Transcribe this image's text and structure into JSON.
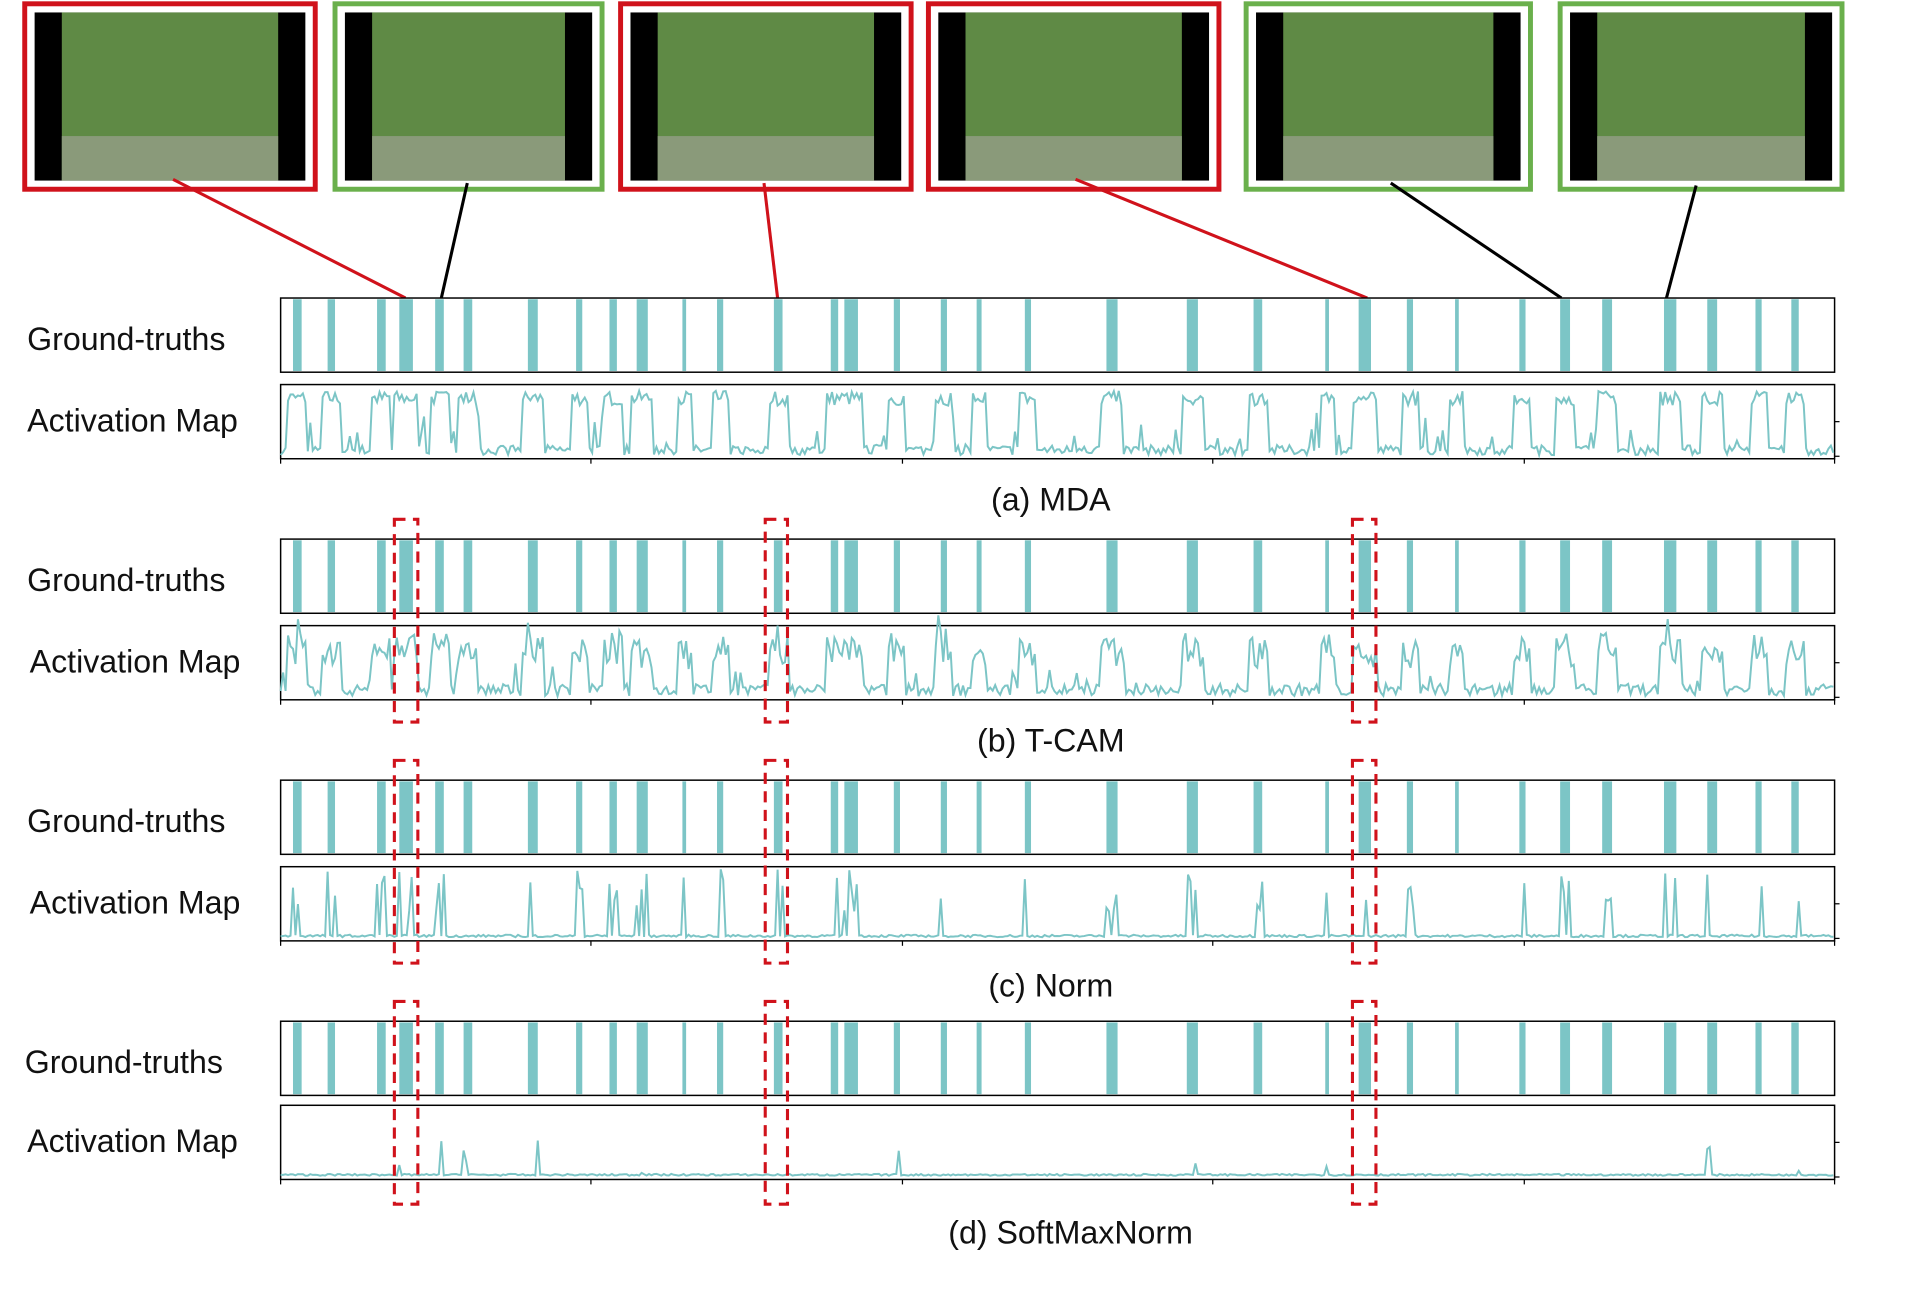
{
  "panels": [
    {
      "gt_label": "Ground-truths",
      "am_label": "Activation Map",
      "caption": "(a) MDA"
    },
    {
      "gt_label": "Ground-truths",
      "am_label": "Activation Map",
      "caption": "(b) T-CAM"
    },
    {
      "gt_label": "Ground-truths",
      "am_label": "Activation Map",
      "caption": "(c) Norm"
    },
    {
      "gt_label": "Ground-truths",
      "am_label": "Activation Map",
      "caption": "(d) SoftMaxNorm"
    }
  ],
  "timeline": {
    "xlim": [
      0,
      1257
    ],
    "ground_truth": [
      [
        10,
        17
      ],
      [
        38,
        44
      ],
      [
        78,
        85
      ],
      [
        96,
        107
      ],
      [
        125,
        132
      ],
      [
        148,
        155
      ],
      [
        200,
        208
      ],
      [
        239,
        244
      ],
      [
        266,
        272
      ],
      [
        288,
        297
      ],
      [
        325,
        328
      ],
      [
        353,
        358
      ],
      [
        399,
        406
      ],
      [
        445,
        451
      ],
      [
        456,
        467
      ],
      [
        496,
        501
      ],
      [
        534,
        539
      ],
      [
        563,
        567
      ],
      [
        602,
        607
      ],
      [
        668,
        677
      ],
      [
        733,
        742
      ],
      [
        787,
        794
      ],
      [
        845,
        848
      ],
      [
        872,
        882
      ],
      [
        911,
        916
      ],
      [
        950,
        953
      ],
      [
        1002,
        1007
      ],
      [
        1035,
        1043
      ],
      [
        1069,
        1077
      ],
      [
        1119,
        1129
      ],
      [
        1154,
        1162
      ],
      [
        1193,
        1198
      ],
      [
        1222,
        1228
      ]
    ]
  }
}
